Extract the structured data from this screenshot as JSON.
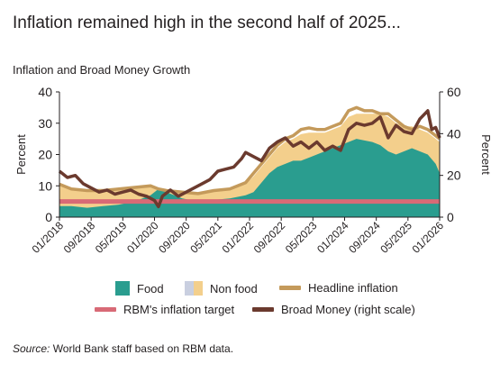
{
  "title": "Inflation remained high in the second half of 2025...",
  "subtitle": "Inflation and Broad Money Growth",
  "source": {
    "label": "Source:",
    "text": " World Bank staff based on RBM data."
  },
  "colors": {
    "food": "#2a9d8f",
    "non_food_light": "#c9cfe0",
    "non_food": "#f3cf8c",
    "headline": "#c49a5b",
    "target": "#d86a76",
    "broad_money": "#6b3a2e"
  },
  "legend": {
    "food": "Food",
    "non_food": "Non food",
    "headline": "Headline inflation",
    "target": "RBM's inflation target",
    "broad_money": "Broad Money (right scale)"
  },
  "chart_data": {
    "type": "area",
    "title": "Inflation and Broad Money Growth",
    "ylabel": "Percent",
    "ylabel_right": "Percent",
    "ylim": [
      0,
      40
    ],
    "ylim_right": [
      0,
      60
    ],
    "yticks": [
      0,
      10,
      20,
      30,
      40
    ],
    "yticks_right": [
      0,
      20,
      40,
      60
    ],
    "xlim": [
      "2018-01",
      "2026-01"
    ],
    "xtick_labels": [
      "01/2018",
      "09/2018",
      "05/2019",
      "01/2020",
      "09/2020",
      "05/2021",
      "01/2022",
      "09/2022",
      "05/2023",
      "01/2024",
      "09/2024",
      "05/2025",
      "01/2026"
    ],
    "grid": false,
    "legend_position": "bottom",
    "series": [
      {
        "name": "Food",
        "type": "area",
        "axis": "left",
        "points": [
          [
            "2018-01",
            3.5
          ],
          [
            "2018-04",
            3.5
          ],
          [
            "2018-08",
            3
          ],
          [
            "2018-12",
            3.5
          ],
          [
            "2019-04",
            4
          ],
          [
            "2019-08",
            5
          ],
          [
            "2019-12",
            7
          ],
          [
            "2020-02",
            9
          ],
          [
            "2020-04",
            8
          ],
          [
            "2020-08",
            6
          ],
          [
            "2020-12",
            5
          ],
          [
            "2021-04",
            5.5
          ],
          [
            "2021-08",
            6
          ],
          [
            "2021-12",
            7
          ],
          [
            "2022-02",
            8
          ],
          [
            "2022-04",
            11
          ],
          [
            "2022-06",
            14
          ],
          [
            "2022-08",
            16
          ],
          [
            "2022-10",
            17
          ],
          [
            "2022-12",
            18
          ],
          [
            "2023-02",
            18
          ],
          [
            "2023-04",
            19
          ],
          [
            "2023-06",
            20
          ],
          [
            "2023-08",
            21
          ],
          [
            "2023-10",
            22
          ],
          [
            "2023-12",
            23
          ],
          [
            "2024-02",
            24
          ],
          [
            "2024-04",
            25
          ],
          [
            "2024-06",
            24.5
          ],
          [
            "2024-08",
            24
          ],
          [
            "2024-10",
            23
          ],
          [
            "2024-12",
            21
          ],
          [
            "2025-02",
            20
          ],
          [
            "2025-04",
            21
          ],
          [
            "2025-06",
            22
          ],
          [
            "2025-08",
            21
          ],
          [
            "2025-10",
            20
          ],
          [
            "2025-12",
            17
          ],
          [
            "2026-01",
            14
          ]
        ]
      },
      {
        "name": "Non food",
        "type": "area",
        "axis": "left",
        "points": [
          [
            "2018-01",
            10
          ],
          [
            "2018-04",
            9
          ],
          [
            "2018-08",
            8.5
          ],
          [
            "2018-12",
            8.5
          ],
          [
            "2019-04",
            9
          ],
          [
            "2019-08",
            9.5
          ],
          [
            "2019-12",
            9.5
          ],
          [
            "2020-02",
            8.5
          ],
          [
            "2020-04",
            8
          ],
          [
            "2020-08",
            7.5
          ],
          [
            "2020-12",
            7.5
          ],
          [
            "2021-04",
            8.5
          ],
          [
            "2021-08",
            9
          ],
          [
            "2021-12",
            10.5
          ],
          [
            "2022-02",
            13
          ],
          [
            "2022-04",
            16
          ],
          [
            "2022-06",
            19
          ],
          [
            "2022-08",
            22
          ],
          [
            "2022-10",
            24
          ],
          [
            "2022-12",
            25
          ],
          [
            "2023-02",
            26.5
          ],
          [
            "2023-04",
            27
          ],
          [
            "2023-06",
            27
          ],
          [
            "2023-08",
            27
          ],
          [
            "2023-10",
            28
          ],
          [
            "2023-12",
            29
          ],
          [
            "2024-02",
            32
          ],
          [
            "2024-04",
            33
          ],
          [
            "2024-06",
            33
          ],
          [
            "2024-08",
            33
          ],
          [
            "2024-10",
            33
          ],
          [
            "2024-12",
            32
          ],
          [
            "2025-02",
            30
          ],
          [
            "2025-04",
            29
          ],
          [
            "2025-06",
            29
          ],
          [
            "2025-08",
            28
          ],
          [
            "2025-10",
            27
          ],
          [
            "2025-12",
            25
          ],
          [
            "2026-01",
            24
          ]
        ]
      },
      {
        "name": "Headline inflation",
        "type": "line",
        "axis": "left",
        "points": [
          [
            "2018-01",
            10.5
          ],
          [
            "2018-04",
            9
          ],
          [
            "2018-08",
            8.5
          ],
          [
            "2018-12",
            8.5
          ],
          [
            "2019-04",
            9
          ],
          [
            "2019-08",
            9.5
          ],
          [
            "2019-12",
            10
          ],
          [
            "2020-02",
            9
          ],
          [
            "2020-04",
            8.5
          ],
          [
            "2020-08",
            8
          ],
          [
            "2020-12",
            7.5
          ],
          [
            "2021-04",
            8.5
          ],
          [
            "2021-08",
            9
          ],
          [
            "2021-12",
            11
          ],
          [
            "2022-02",
            14
          ],
          [
            "2022-04",
            17
          ],
          [
            "2022-06",
            20
          ],
          [
            "2022-08",
            23
          ],
          [
            "2022-10",
            25
          ],
          [
            "2022-12",
            26
          ],
          [
            "2023-02",
            28
          ],
          [
            "2023-04",
            28.5
          ],
          [
            "2023-06",
            28
          ],
          [
            "2023-08",
            28
          ],
          [
            "2023-10",
            29
          ],
          [
            "2023-12",
            30
          ],
          [
            "2024-02",
            34
          ],
          [
            "2024-04",
            35
          ],
          [
            "2024-06",
            34
          ],
          [
            "2024-08",
            34
          ],
          [
            "2024-10",
            33
          ],
          [
            "2024-12",
            33
          ],
          [
            "2025-02",
            31
          ],
          [
            "2025-04",
            29
          ],
          [
            "2025-06",
            28
          ],
          [
            "2025-08",
            29
          ],
          [
            "2025-10",
            28
          ],
          [
            "2025-12",
            26
          ],
          [
            "2026-01",
            25
          ]
        ]
      },
      {
        "name": "RBM's inflation target",
        "type": "line",
        "axis": "left",
        "points": [
          [
            "2018-01",
            5
          ],
          [
            "2026-01",
            5
          ]
        ]
      },
      {
        "name": "Broad Money (right scale)",
        "type": "line",
        "axis": "right",
        "points": [
          [
            "2018-01",
            22
          ],
          [
            "2018-03",
            19
          ],
          [
            "2018-05",
            20
          ],
          [
            "2018-07",
            16
          ],
          [
            "2018-09",
            14
          ],
          [
            "2018-11",
            12
          ],
          [
            "2019-01",
            13
          ],
          [
            "2019-03",
            11
          ],
          [
            "2019-05",
            12
          ],
          [
            "2019-07",
            13
          ],
          [
            "2019-09",
            11
          ],
          [
            "2019-11",
            10
          ],
          [
            "2020-01",
            8
          ],
          [
            "2020-02",
            5
          ],
          [
            "2020-03",
            10
          ],
          [
            "2020-05",
            13
          ],
          [
            "2020-07",
            10
          ],
          [
            "2020-09",
            12
          ],
          [
            "2020-11",
            14
          ],
          [
            "2021-01",
            16
          ],
          [
            "2021-03",
            18
          ],
          [
            "2021-05",
            22
          ],
          [
            "2021-07",
            23
          ],
          [
            "2021-09",
            24
          ],
          [
            "2021-11",
            28
          ],
          [
            "2021-12",
            31
          ],
          [
            "2022-02",
            29
          ],
          [
            "2022-04",
            27
          ],
          [
            "2022-06",
            33
          ],
          [
            "2022-08",
            36
          ],
          [
            "2022-10",
            38
          ],
          [
            "2022-12",
            34
          ],
          [
            "2023-02",
            36
          ],
          [
            "2023-04",
            33
          ],
          [
            "2023-06",
            36
          ],
          [
            "2023-08",
            32
          ],
          [
            "2023-10",
            34
          ],
          [
            "2023-12",
            32
          ],
          [
            "2024-02",
            42
          ],
          [
            "2024-04",
            45
          ],
          [
            "2024-06",
            44
          ],
          [
            "2024-08",
            45
          ],
          [
            "2024-10",
            48
          ],
          [
            "2024-12",
            38
          ],
          [
            "2025-02",
            44
          ],
          [
            "2025-04",
            41
          ],
          [
            "2025-06",
            40
          ],
          [
            "2025-08",
            47
          ],
          [
            "2025-10",
            51
          ],
          [
            "2025-11",
            42
          ],
          [
            "2025-12",
            43
          ],
          [
            "2026-01",
            38
          ]
        ]
      }
    ]
  }
}
